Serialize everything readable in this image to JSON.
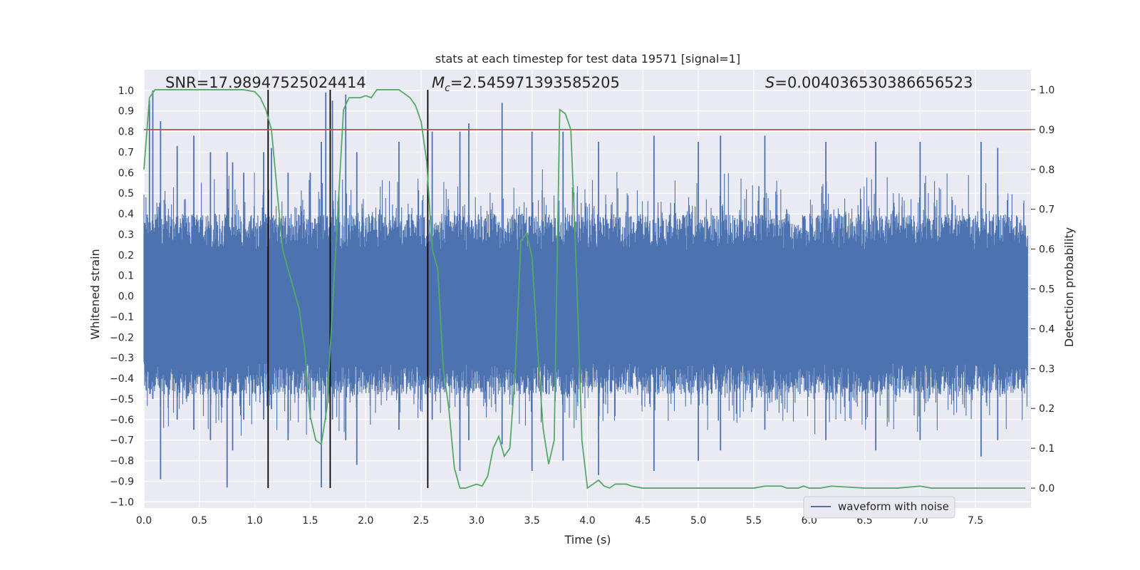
{
  "chart_data": {
    "type": "line",
    "title": "stats at each timestep for test data 19571 [signal=1]",
    "xlabel": "Time (s)",
    "ylabel_left": "Whitened strain",
    "ylabel_right": "Detection probability",
    "xlim": [
      0.0,
      8.0
    ],
    "ylim_left": [
      -1.03,
      1.1
    ],
    "ylim_right": [
      -0.05,
      1.05
    ],
    "x_ticks": [
      "0.0",
      "0.5",
      "1.0",
      "1.5",
      "2.0",
      "2.5",
      "3.0",
      "3.5",
      "4.0",
      "4.5",
      "5.0",
      "5.5",
      "6.0",
      "6.5",
      "7.0",
      "7.5"
    ],
    "y_left_ticks": [
      "−1.0",
      "−0.9",
      "−0.8",
      "−0.7",
      "−0.6",
      "−0.5",
      "−0.4",
      "−0.3",
      "−0.2",
      "−0.1",
      "0.0",
      "0.1",
      "0.2",
      "0.3",
      "0.4",
      "0.5",
      "0.6",
      "0.7",
      "0.8",
      "0.9",
      "1.0"
    ],
    "y_right_ticks": [
      "0.0",
      "0.1",
      "0.2",
      "0.3",
      "0.4",
      "0.5",
      "0.6",
      "0.7",
      "0.8",
      "0.9",
      "1.0"
    ],
    "grid": true,
    "legend_position": "lower-right",
    "annotations": {
      "snr": "SNR=17.98947525024414",
      "mc": "M<sub>c</sub>=2.545971393585205",
      "mc_prefix": "M",
      "mc_sub": "c",
      "mc_value": "=2.545971393585205",
      "s_prefix": "S",
      "s_value": "=0.004036530386656523"
    },
    "vertical_lines_x": [
      1.12,
      1.68,
      2.56
    ],
    "threshold_line": {
      "axis": "right",
      "y": 0.9,
      "color": "#c44e52"
    },
    "series": [
      {
        "name": "waveform with noise",
        "axis": "left",
        "color": "#4c72b0",
        "style": "noise",
        "peaks": [
          {
            "x": 0.05,
            "hi": 0.95,
            "lo": -0.45
          },
          {
            "x": 0.08,
            "hi": 1.0,
            "lo": -0.5
          },
          {
            "x": 0.15,
            "hi": 0.85,
            "lo": -0.89
          },
          {
            "x": 0.3,
            "hi": 0.73,
            "lo": -0.6
          },
          {
            "x": 0.45,
            "hi": 0.78,
            "lo": -0.65
          },
          {
            "x": 0.6,
            "hi": 0.7,
            "lo": -0.7
          },
          {
            "x": 0.75,
            "hi": 0.7,
            "lo": -0.93
          },
          {
            "x": 0.8,
            "hi": 0.65,
            "lo": -0.75
          },
          {
            "x": 0.9,
            "hi": 0.6,
            "lo": -0.6
          },
          {
            "x": 1.08,
            "hi": 0.7,
            "lo": -0.6
          },
          {
            "x": 1.15,
            "hi": 0.72,
            "lo": -0.55
          },
          {
            "x": 1.3,
            "hi": 0.6,
            "lo": -0.7
          },
          {
            "x": 1.5,
            "hi": 0.6,
            "lo": -0.6
          },
          {
            "x": 1.6,
            "hi": 0.75,
            "lo": -0.93
          },
          {
            "x": 1.64,
            "hi": 0.99,
            "lo": -0.6
          },
          {
            "x": 1.7,
            "hi": 0.95,
            "lo": -0.6
          },
          {
            "x": 1.82,
            "hi": 0.98,
            "lo": -0.7
          },
          {
            "x": 1.92,
            "hi": 0.7,
            "lo": -0.82
          },
          {
            "x": 2.3,
            "hi": 0.75,
            "lo": -0.65
          },
          {
            "x": 2.6,
            "hi": 0.8,
            "lo": -0.6
          },
          {
            "x": 2.85,
            "hi": 0.8,
            "lo": -0.85
          },
          {
            "x": 2.93,
            "hi": 0.84,
            "lo": -0.7
          },
          {
            "x": 3.23,
            "hi": 0.94,
            "lo": -0.72
          },
          {
            "x": 3.5,
            "hi": 0.8,
            "lo": -0.85
          },
          {
            "x": 3.78,
            "hi": 0.8,
            "lo": -0.8
          },
          {
            "x": 4.1,
            "hi": 0.75,
            "lo": -0.87
          },
          {
            "x": 4.6,
            "hi": 0.78,
            "lo": -0.85
          },
          {
            "x": 5.0,
            "hi": 0.75,
            "lo": -0.8
          },
          {
            "x": 5.2,
            "hi": 0.78,
            "lo": -0.75
          },
          {
            "x": 5.6,
            "hi": 0.78,
            "lo": -0.65
          },
          {
            "x": 6.15,
            "hi": 0.75,
            "lo": -0.7
          },
          {
            "x": 6.6,
            "hi": 0.75,
            "lo": -0.75
          },
          {
            "x": 7.0,
            "hi": 0.75,
            "lo": -0.7
          },
          {
            "x": 7.55,
            "hi": 0.75,
            "lo": -0.78
          },
          {
            "x": 7.7,
            "hi": 0.72,
            "lo": -0.7
          }
        ]
      },
      {
        "name": "detection probability",
        "axis": "right",
        "color": "#55a868",
        "x": [
          0.0,
          0.05,
          0.1,
          0.2,
          0.4,
          0.6,
          0.8,
          0.9,
          1.0,
          1.05,
          1.1,
          1.15,
          1.2,
          1.25,
          1.3,
          1.4,
          1.45,
          1.5,
          1.55,
          1.6,
          1.65,
          1.7,
          1.75,
          1.8,
          1.85,
          1.9,
          1.95,
          2.0,
          2.05,
          2.1,
          2.15,
          2.2,
          2.3,
          2.4,
          2.45,
          2.5,
          2.55,
          2.6,
          2.65,
          2.7,
          2.75,
          2.8,
          2.85,
          2.9,
          3.0,
          3.05,
          3.1,
          3.15,
          3.2,
          3.25,
          3.3,
          3.35,
          3.4,
          3.45,
          3.5,
          3.55,
          3.6,
          3.65,
          3.7,
          3.75,
          3.8,
          3.85,
          3.9,
          3.95,
          4.0,
          4.05,
          4.1,
          4.15,
          4.2,
          4.25,
          4.3,
          4.35,
          4.4,
          4.5,
          4.8,
          5.0,
          5.2,
          5.4,
          5.5,
          5.6,
          5.65,
          5.7,
          5.75,
          5.8,
          5.85,
          5.9,
          5.95,
          6.0,
          6.05,
          6.1,
          6.2,
          6.5,
          6.6,
          6.8,
          7.0,
          7.1,
          7.2,
          7.5,
          7.8,
          7.95
        ],
        "y": [
          0.8,
          0.98,
          1.0,
          1.0,
          1.0,
          1.0,
          1.0,
          1.0,
          0.995,
          0.98,
          0.95,
          0.9,
          0.75,
          0.6,
          0.55,
          0.45,
          0.35,
          0.18,
          0.12,
          0.11,
          0.2,
          0.45,
          0.7,
          0.95,
          0.98,
          0.98,
          0.98,
          0.985,
          0.98,
          1.0,
          1.0,
          1.0,
          1.0,
          0.98,
          0.96,
          0.92,
          0.82,
          0.6,
          0.55,
          0.3,
          0.2,
          0.05,
          0.0,
          0.0,
          0.01,
          0.005,
          0.03,
          0.1,
          0.13,
          0.08,
          0.1,
          0.3,
          0.62,
          0.64,
          0.58,
          0.35,
          0.15,
          0.06,
          0.12,
          0.95,
          0.94,
          0.9,
          0.55,
          0.12,
          0.0,
          0.01,
          0.02,
          0.005,
          0.0,
          0.01,
          0.01,
          0.01,
          0.005,
          0.0,
          0.0,
          0.0,
          0.0,
          0.0,
          0.0,
          0.005,
          0.005,
          0.005,
          0.005,
          0.0,
          0.0,
          0.0,
          0.005,
          0.0,
          0.0,
          0.0,
          0.005,
          0.0,
          0.0,
          0.0,
          0.005,
          0.0,
          0.0,
          0.0,
          0.0,
          0.0
        ]
      }
    ]
  }
}
